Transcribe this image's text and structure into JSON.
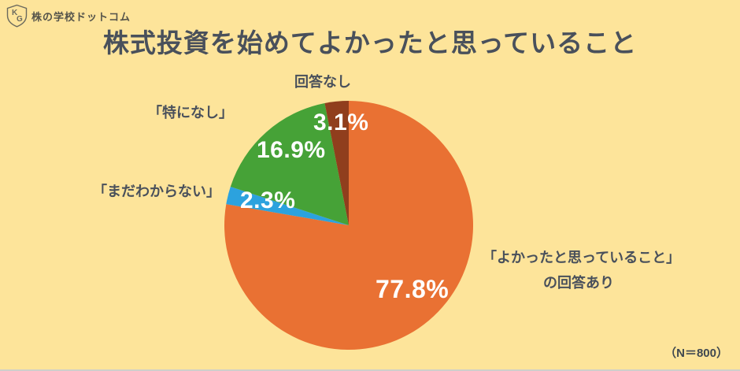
{
  "logo": {
    "monogram_top": "K",
    "monogram_bottom": "G",
    "text": "株の学校ドットコム"
  },
  "title": "株式投資を始めてよかったと思っていること",
  "footnote": "（N＝800）",
  "colors": {
    "background": "#FDE49A",
    "text": "#49505B",
    "percent_text": "#FFFFFF"
  },
  "callouts": {
    "answered_line1": "「よかったと思っていること」",
    "answered_line2": "の回答あり",
    "dont_know": "「まだわからない」",
    "nothing": "「特になし」",
    "no_answer": "回答なし"
  },
  "chart_data": {
    "type": "pie",
    "title": "株式投資を始めてよかったと思っていること",
    "sample_size": "（N＝800）",
    "start_angle_deg": 0,
    "direction": "clockwise",
    "legend_position": "around-pie",
    "slices": [
      {
        "label": "「よかったと思っていること」の回答あり",
        "value": 77.8,
        "display": "77.8%",
        "color": "#E97133"
      },
      {
        "label": "「まだわからない」",
        "value": 2.3,
        "display": "2.3%",
        "color": "#2CA2DE"
      },
      {
        "label": "「特になし」",
        "value": 16.9,
        "display": "16.9%",
        "color": "#46A237"
      },
      {
        "label": "回答なし",
        "value": 3.1,
        "display": "3.1%",
        "color": "#903E1D"
      }
    ]
  }
}
